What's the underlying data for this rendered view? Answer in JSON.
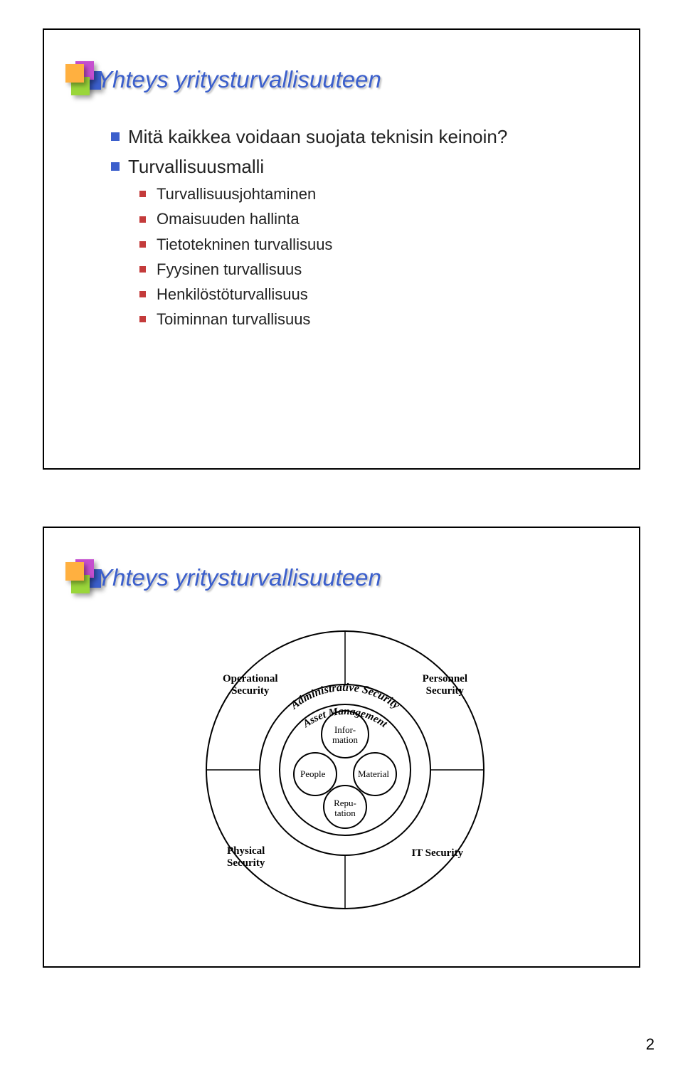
{
  "page_number": "2",
  "colors": {
    "title": "#3b5fcc",
    "bullet_primary": "#3b5fcc",
    "bullet_secondary": "#c43b3b",
    "accent_orange": "#ffb040",
    "accent_purple": "#c54fcf",
    "accent_blue": "#3b5fcc",
    "accent_green": "#9ad63a",
    "diagram_line": "#000000"
  },
  "slide1": {
    "title": "Yhteys yritysturvallisuuteen",
    "b1": "Mitä kaikkea voidaan suojata teknisin keinoin?",
    "b2": "Turvallisuusmalli",
    "sub": {
      "s1": "Turvallisuusjohtaminen",
      "s2": "Omaisuuden hallinta",
      "s3": "Tietotekninen turvallisuus",
      "s4": "Fyysinen turvallisuus",
      "s5": "Henkilöstöturvallisuus",
      "s6": "Toiminnan turvallisuus"
    }
  },
  "slide2": {
    "title": "Yhteys yritysturvallisuuteen",
    "quadrants": {
      "tl": "Operational\nSecurity",
      "tr": "Personnel\nSecurity",
      "bl": "Physical\nSecurity",
      "br": "IT Security"
    },
    "arcs": {
      "outer": "Administrative Security",
      "inner": "Asset Management"
    },
    "core": {
      "top": "Infor-\nmation",
      "left": "People",
      "right": "Material",
      "bottom": "Repu-\ntation"
    }
  }
}
